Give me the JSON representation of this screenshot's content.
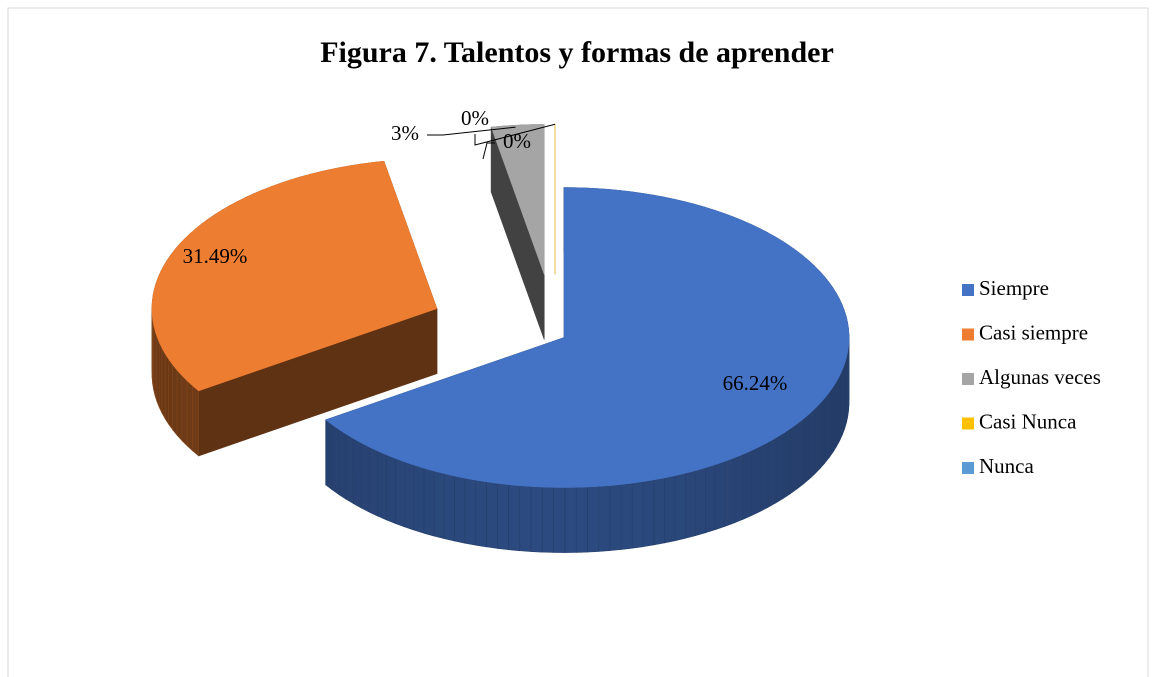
{
  "chart_data": {
    "type": "pie",
    "title": "Figura 7. Talentos y formas de aprender",
    "categories": [
      "Siempre",
      "Casi siempre",
      "Algunas veces",
      "Casi Nunca",
      "Nunca"
    ],
    "values": [
      66.24,
      31.49,
      3,
      0,
      0
    ],
    "value_labels": [
      "66.24%",
      "31.49%",
      "3%",
      "0%",
      "0%"
    ],
    "colors": [
      "#4472c4",
      "#ed7d31",
      "#a5a5a5",
      "#ffc000",
      "#5b9bd5"
    ],
    "legend": "right"
  }
}
